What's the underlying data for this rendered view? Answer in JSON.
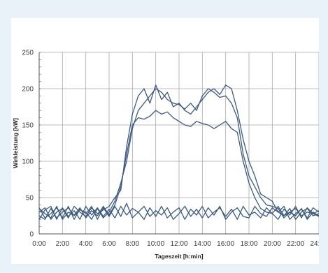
{
  "chart_data": {
    "type": "line",
    "title": "",
    "xlabel": "Tageszeit [h:min]",
    "ylabel": "Wirkleistung [kW]",
    "xlim": [
      0,
      24
    ],
    "ylim": [
      0,
      250
    ],
    "grid": true,
    "x_tick_labels": [
      "0:00",
      "2:00",
      "4:00",
      "6:00",
      "8:00",
      "10:00",
      "12:00",
      "14:00",
      "16:00",
      "18:00",
      "20:00",
      "22:00",
      "24:00"
    ],
    "y_tick_labels": [
      "0",
      "50",
      "100",
      "150",
      "200",
      "250"
    ],
    "line_color": "#3d5a80",
    "x": [
      0,
      0.5,
      1,
      1.5,
      2,
      2.5,
      3,
      3.5,
      4,
      4.5,
      5,
      5.5,
      6,
      6.5,
      7,
      7.5,
      8,
      8.5,
      9,
      9.5,
      10,
      10.5,
      11,
      11.5,
      12,
      12.5,
      13,
      13.5,
      14,
      14.5,
      15,
      15.5,
      16,
      16.5,
      17,
      17.5,
      18,
      18.5,
      19,
      19.5,
      20,
      20.5,
      21,
      21.5,
      22,
      22.5,
      23,
      23.5,
      24
    ],
    "series": [
      {
        "values": [
          30,
          36,
          20,
          30,
          35,
          22,
          38,
          30,
          24,
          36,
          28,
          33,
          38,
          50,
          60,
          120,
          165,
          190,
          200,
          180,
          205,
          185,
          195,
          175,
          180,
          170,
          165,
          175,
          185,
          195,
          200,
          192,
          205,
          200,
          170,
          130,
          100,
          80,
          55,
          50,
          45,
          30,
          25,
          30,
          35,
          25,
          30,
          28,
          32
        ]
      },
      {
        "values": [
          25,
          20,
          35,
          22,
          30,
          36,
          25,
          33,
          30,
          20,
          35,
          22,
          30,
          45,
          70,
          100,
          145,
          170,
          180,
          190,
          200,
          195,
          185,
          180,
          178,
          172,
          180,
          170,
          190,
          200,
          195,
          188,
          190,
          180,
          160,
          110,
          80,
          65,
          50,
          40,
          38,
          35,
          22,
          30,
          25,
          35,
          20,
          30,
          25
        ]
      },
      {
        "values": [
          35,
          28,
          22,
          38,
          20,
          30,
          26,
          36,
          22,
          32,
          25,
          38,
          26,
          40,
          65,
          110,
          150,
          160,
          158,
          162,
          170,
          165,
          168,
          160,
          155,
          150,
          148,
          155,
          152,
          150,
          145,
          150,
          155,
          145,
          140,
          100,
          70,
          50,
          35,
          30,
          28,
          38,
          25,
          35,
          20,
          30,
          35,
          25,
          28
        ]
      },
      {
        "values": [
          20,
          33,
          38,
          20,
          36,
          24,
          32,
          20,
          38,
          26,
          36,
          24,
          34,
          22,
          38,
          26,
          35,
          30,
          20,
          36,
          24,
          38,
          22,
          30,
          36,
          20,
          34,
          26,
          38,
          22,
          30,
          36,
          24,
          34,
          20,
          38,
          26,
          30,
          22,
          36,
          28,
          20,
          34,
          26,
          38,
          22,
          36,
          28,
          24
        ]
      },
      {
        "values": [
          36,
          22,
          28,
          36,
          22,
          38,
          20,
          34,
          28,
          38,
          20,
          36,
          24,
          38,
          24,
          42,
          22,
          30,
          38,
          24,
          32,
          26,
          36,
          20,
          28,
          38,
          24,
          34,
          22,
          36,
          26,
          38,
          20,
          30,
          36,
          24,
          22,
          38,
          28,
          24,
          36,
          30,
          38,
          20,
          28,
          34,
          22,
          36,
          30
        ]
      }
    ]
  }
}
